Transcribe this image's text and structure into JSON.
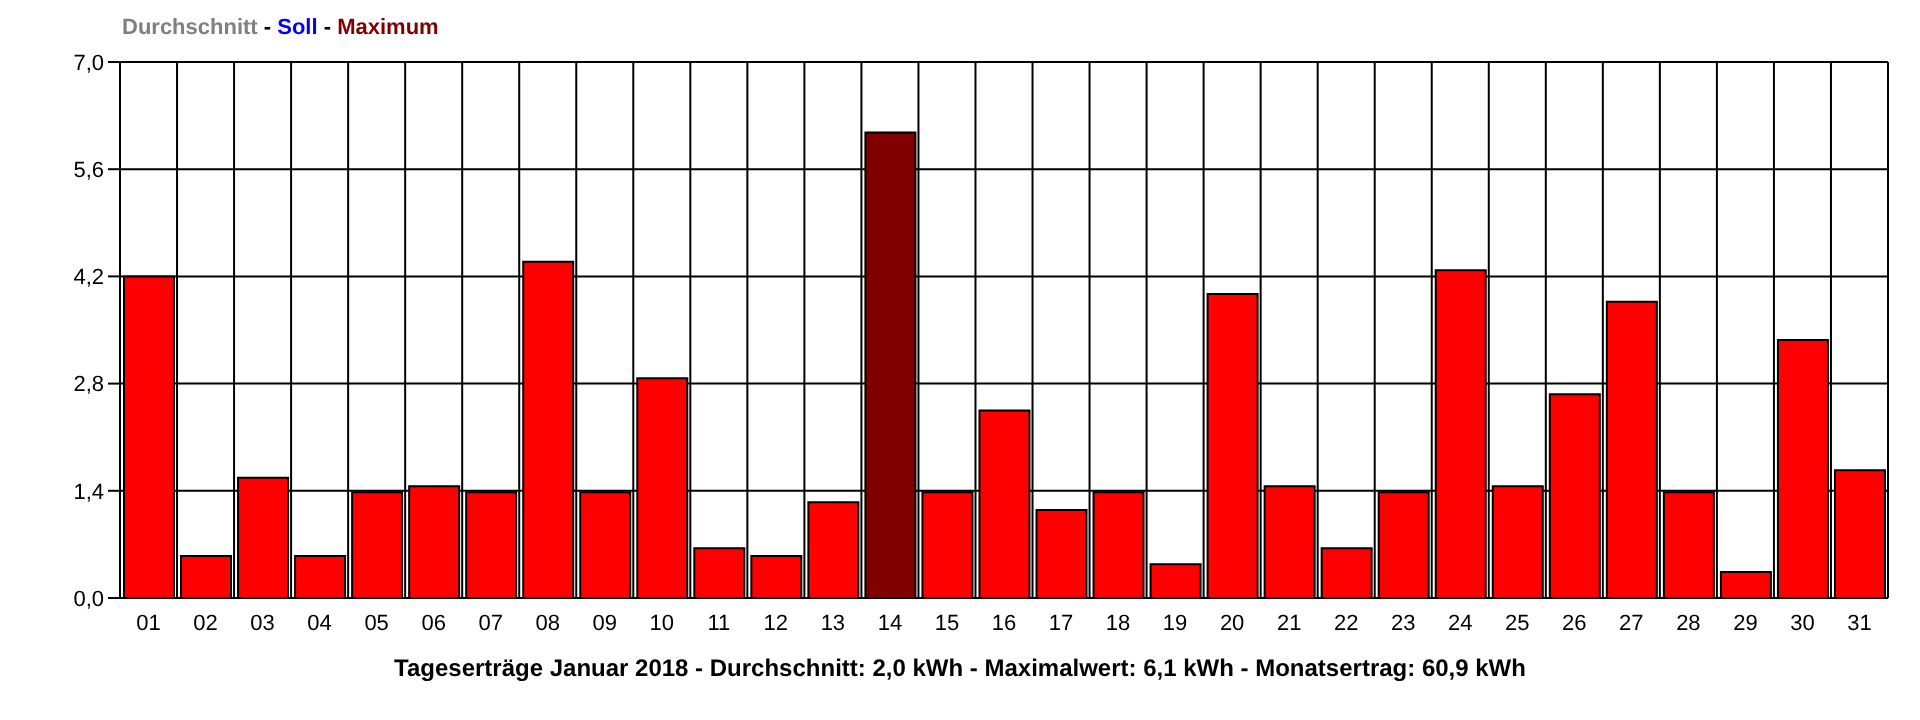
{
  "chart_data": {
    "type": "bar",
    "title": "Tageserträge Januar 2018 - Durchschnitt: 2,0 kWh - Maximalwert: 6,1 kWh - Monatsertrag: 60,9 kWh",
    "annotations": [
      "Durchschnitt",
      " - ",
      "Soll",
      " - ",
      "Maximum"
    ],
    "categories": [
      "01",
      "02",
      "03",
      "04",
      "05",
      "06",
      "07",
      "08",
      "09",
      "10",
      "11",
      "12",
      "13",
      "14",
      "15",
      "16",
      "17",
      "18",
      "19",
      "20",
      "21",
      "22",
      "23",
      "24",
      "25",
      "26",
      "27",
      "28",
      "29",
      "30",
      "31"
    ],
    "values": [
      4.2,
      0.55,
      1.57,
      0.55,
      1.38,
      1.46,
      1.38,
      4.39,
      1.38,
      2.87,
      0.65,
      0.55,
      1.25,
      6.08,
      1.38,
      2.45,
      1.15,
      1.38,
      0.44,
      3.97,
      1.46,
      0.65,
      1.38,
      4.28,
      1.46,
      2.66,
      3.87,
      1.38,
      0.34,
      3.37,
      1.67
    ],
    "colors": [
      "#ff0000",
      "#ff0000",
      "#ff0000",
      "#ff0000",
      "#ff0000",
      "#ff0000",
      "#ff0000",
      "#ff0000",
      "#ff0000",
      "#ff0000",
      "#ff0000",
      "#ff0000",
      "#ff0000",
      "#800000",
      "#ff0000",
      "#ff0000",
      "#ff0000",
      "#ff0000",
      "#ff0000",
      "#ff0000",
      "#ff0000",
      "#ff0000",
      "#ff0000",
      "#ff0000",
      "#ff0000",
      "#ff0000",
      "#ff0000",
      "#ff0000",
      "#ff0000",
      "#ff0000",
      "#ff0000"
    ],
    "ylim": [
      0,
      7
    ],
    "yticks": [
      {
        "value": 0,
        "label": "0,0"
      },
      {
        "value": 1.4,
        "label": "1,4"
      },
      {
        "value": 2.8,
        "label": "2,8"
      },
      {
        "value": 4.2,
        "label": "4,2"
      },
      {
        "value": 5.6,
        "label": "5,6"
      },
      {
        "value": 7,
        "label": "7,0"
      }
    ],
    "grid": true
  }
}
